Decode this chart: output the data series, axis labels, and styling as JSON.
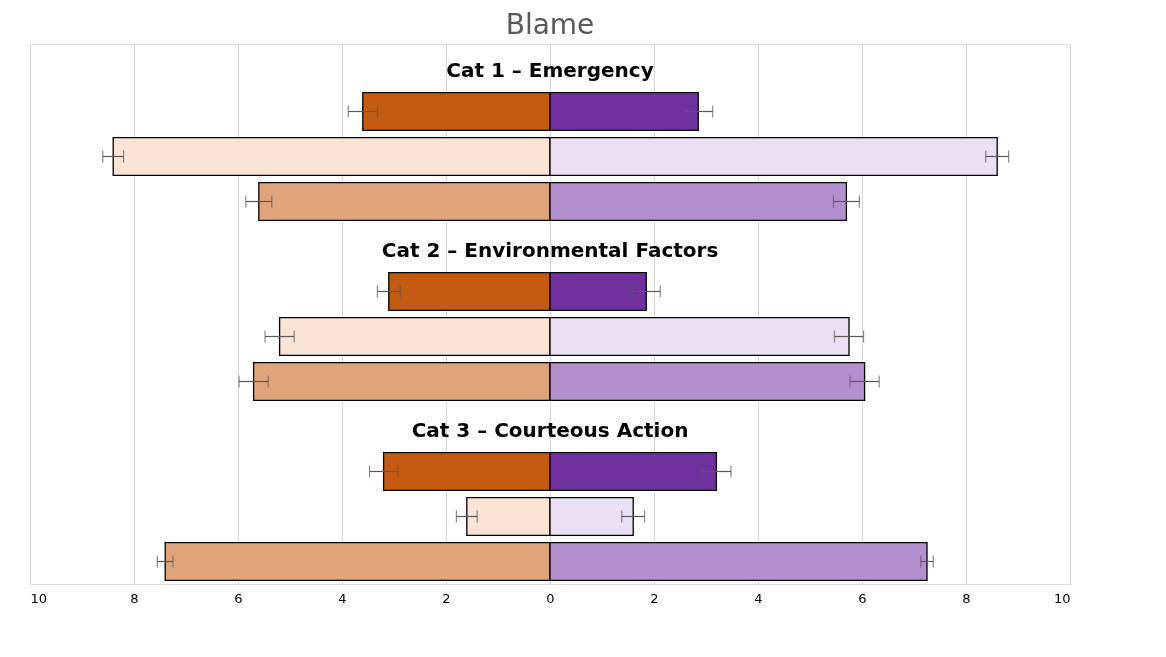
{
  "chart_data": {
    "type": "bar",
    "orientation": "horizontal",
    "title": "Blame",
    "categories": [
      "Cat 1 – Emergency",
      null,
      null,
      null,
      "Cat 2 – Environmental Factors",
      null,
      null,
      null,
      "Cat 3 – Courteous Action",
      null,
      null,
      null
    ],
    "series": [
      {
        "colors": [
          null,
          "#c55a11",
          "#f8e3d5",
          "#e0a47a",
          null,
          "#c55a11",
          "#f8e3d5",
          "#e0a47a",
          null,
          "#c55a11",
          "#f8e3d5",
          "#e0a47a"
        ],
        "values": [
          null,
          -3.6,
          -8.4,
          -5.6,
          null,
          -3.1,
          -5.2,
          -5.7,
          null,
          -3.2,
          -1.6,
          -7.4
        ],
        "errors": [
          null,
          0.28,
          0.2,
          0.25,
          null,
          0.22,
          0.28,
          0.28,
          null,
          0.27,
          0.2,
          0.15
        ]
      },
      {
        "colors": [
          null,
          "#7030a0",
          "#ebe0f3",
          "#b48fcf",
          null,
          "#7030a0",
          "#ebe0f3",
          "#b48fcf",
          null,
          "#7030a0",
          "#ebe0f3",
          "#b48fcf"
        ],
        "values": [
          null,
          2.85,
          8.6,
          5.7,
          null,
          1.85,
          5.75,
          6.05,
          null,
          3.2,
          1.6,
          7.25
        ],
        "errors": [
          null,
          0.28,
          0.22,
          0.25,
          null,
          0.27,
          0.28,
          0.28,
          null,
          0.28,
          0.22,
          0.12
        ]
      }
    ],
    "xlim": [
      -10,
      10
    ],
    "xticks": [
      {
        "value": -10,
        "label": "10"
      },
      {
        "value": -8,
        "label": "8"
      },
      {
        "value": -6,
        "label": "6"
      },
      {
        "value": -4,
        "label": "4"
      },
      {
        "value": -2,
        "label": "2"
      },
      0,
      2,
      4,
      6,
      8,
      10
    ],
    "grid": "x",
    "tick_labels": "x",
    "stacked": true
  }
}
